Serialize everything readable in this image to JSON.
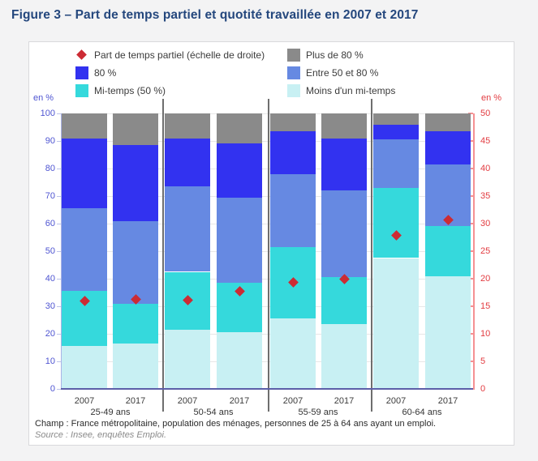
{
  "title": "Figure 3 – Part de temps partiel et quotité travaillée en 2007 et 2017",
  "legend": {
    "items": [
      {
        "label": "Part de temps partiel (échelle de droite)",
        "marker": "diamond",
        "color": "#cc2b34"
      },
      {
        "label": "Plus de 80 %",
        "marker": "square",
        "color": "#8a8a8a"
      },
      {
        "label": "80 %",
        "marker": "square",
        "color": "#3232f0"
      },
      {
        "label": "Entre 50 et 80 %",
        "marker": "square",
        "color": "#6689e2"
      },
      {
        "label": "Mi-temps (50 %)",
        "marker": "square",
        "color": "#35d9dc"
      },
      {
        "label": "Moins d'un mi-temps",
        "marker": "square",
        "color": "#c8f0f3"
      }
    ]
  },
  "chart_data": {
    "type": "bar",
    "stacked": true,
    "title": "Part de temps partiel et quotité travaillée en 2007 et 2017",
    "groups": [
      "25-49 ans",
      "50-54 ans",
      "55-59 ans",
      "60-64 ans"
    ],
    "categories": [
      {
        "year": "2007",
        "group": "25-49 ans"
      },
      {
        "year": "2017",
        "group": "25-49 ans"
      },
      {
        "year": "2007",
        "group": "50-54 ans"
      },
      {
        "year": "2017",
        "group": "50-54 ans"
      },
      {
        "year": "2007",
        "group": "55-59 ans"
      },
      {
        "year": "2017",
        "group": "55-59 ans"
      },
      {
        "year": "2007",
        "group": "60-64 ans"
      },
      {
        "year": "2017",
        "group": "60-64 ans"
      }
    ],
    "series": [
      {
        "name": "Moins d'un mi-temps",
        "color": "#c8f0f3",
        "values": [
          15.5,
          16.5,
          21.5,
          20.5,
          25.5,
          23.5,
          47.5,
          41
        ]
      },
      {
        "name": "Mi-temps (50 %)",
        "color": "#35d9dc",
        "values": [
          20,
          14.5,
          21,
          18,
          26,
          17,
          25.5,
          18
        ]
      },
      {
        "name": "Entre 50 et 80 %",
        "color": "#6689e2",
        "values": [
          30,
          30,
          31,
          31,
          26.5,
          31.5,
          17.5,
          22.5
        ]
      },
      {
        "name": "80 %",
        "color": "#3232f0",
        "values": [
          25.5,
          27.5,
          17.5,
          19.5,
          15.5,
          19,
          5.5,
          12
        ]
      },
      {
        "name": "Plus de 80 %",
        "color": "#8a8a8a",
        "values": [
          9,
          11.5,
          9,
          11,
          6.5,
          9,
          4,
          6.5
        ]
      }
    ],
    "marker_series": {
      "name": "Part de temps partiel (échelle de droite)",
      "axis": "right",
      "color": "#cc2b34",
      "values": [
        16,
        16.2,
        16.1,
        17.7,
        19.4,
        20,
        27.9,
        30.7
      ]
    },
    "left_axis": {
      "label": "en %",
      "range": [
        0,
        100
      ],
      "tick_step": 10
    },
    "right_axis": {
      "label": "en %",
      "range": [
        0,
        50
      ],
      "tick_step": 5
    },
    "legend_position": "top",
    "grid": true
  },
  "footer": {
    "champ": "Champ : France métropolitaine, population des ménages, personnes de 25 à 64 ans ayant un emploi.",
    "source": "Source : Insee, enquêtes Emploi."
  }
}
